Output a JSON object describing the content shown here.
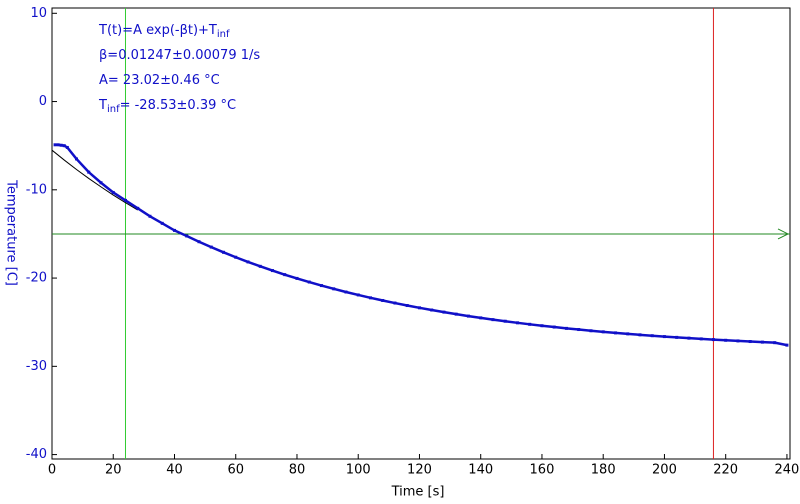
{
  "chart_data": {
    "type": "scatter",
    "xlabel": "Time [s]",
    "ylabel": "Temperature [C]",
    "xlim": [
      0,
      241
    ],
    "ylim": [
      -40.5,
      10.6
    ],
    "xticks": [
      0,
      20,
      40,
      60,
      80,
      100,
      120,
      140,
      160,
      180,
      200,
      220,
      240
    ],
    "yticks": [
      10,
      0,
      -10,
      -20,
      -30,
      -40
    ],
    "series": [
      {
        "name": "fit",
        "color": "#000000",
        "style": "line",
        "x": [
          0,
          4,
          8,
          12,
          16,
          20,
          24,
          28
        ],
        "values": [
          -5.51,
          -6.63,
          -7.7,
          -8.71,
          -9.67,
          -10.59,
          -11.46,
          -12.29
        ]
      },
      {
        "name": "data",
        "color": "#1010c8",
        "style": "markers",
        "x": [
          1,
          2,
          3,
          4,
          5,
          8,
          12,
          16,
          20,
          24,
          28,
          32,
          36,
          40,
          44,
          48,
          52,
          56,
          60,
          64,
          68,
          72,
          76,
          80,
          84,
          88,
          92,
          96,
          100,
          104,
          108,
          112,
          116,
          120,
          124,
          128,
          132,
          136,
          140,
          144,
          148,
          152,
          156,
          160,
          164,
          168,
          172,
          176,
          180,
          184,
          188,
          192,
          196,
          200,
          204,
          208,
          212,
          216,
          220,
          224,
          228,
          232,
          236,
          240
        ],
        "values": [
          -4.9,
          -4.9,
          -4.95,
          -5.0,
          -5.2,
          -6.5,
          -8.0,
          -9.2,
          -10.3,
          -11.2,
          -12.1,
          -13.0,
          -13.8,
          -14.6,
          -15.23,
          -15.88,
          -16.49,
          -17.08,
          -17.64,
          -18.17,
          -18.67,
          -19.15,
          -19.61,
          -20.04,
          -20.45,
          -20.85,
          -21.22,
          -21.58,
          -21.91,
          -22.24,
          -22.54,
          -22.83,
          -23.11,
          -23.37,
          -23.62,
          -23.86,
          -24.09,
          -24.31,
          -24.51,
          -24.71,
          -24.89,
          -25.07,
          -25.24,
          -25.4,
          -25.55,
          -25.7,
          -25.83,
          -25.97,
          -26.09,
          -26.21,
          -26.32,
          -26.43,
          -26.53,
          -26.63,
          -26.72,
          -26.81,
          -26.89,
          -26.97,
          -27.05,
          -27.12,
          -27.19,
          -27.26,
          -27.32,
          -27.6
        ]
      }
    ],
    "cursors": [
      {
        "axis": "x",
        "value": 24,
        "color": "#33cc33"
      },
      {
        "axis": "x",
        "value": 216,
        "color": "#dd2222"
      },
      {
        "axis": "y",
        "value": -15,
        "color": "#228822"
      }
    ],
    "annotations": [
      [
        {
          "t": "T(t)=A exp(-βt)+T"
        },
        {
          "t": "inf",
          "sub": true
        }
      ],
      [
        {
          "t": "β=0.01247±0.00079 1/s"
        }
      ],
      [
        {
          "t": "A= 23.02±0.46 °C"
        }
      ],
      [
        {
          "t": "T"
        },
        {
          "t": "inf",
          "sub": true
        },
        {
          "t": "= -28.53±0.39 °C"
        }
      ]
    ]
  }
}
